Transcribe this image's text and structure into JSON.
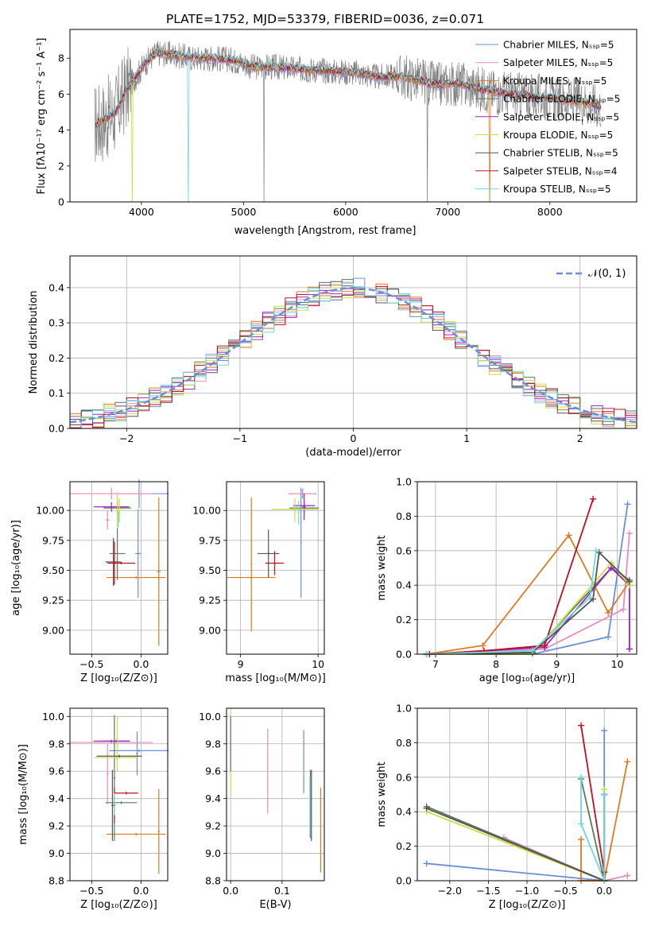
{
  "colors": {
    "chabrier_miles": "#6b8fd9",
    "salpeter_miles": "#e88bc0",
    "kroupa_miles": "#e07a1e",
    "chabrier_elodie": "#5a7a5a",
    "salpeter_elodie": "#a020c0",
    "kroupa_elodie": "#c8e040",
    "chabrier_stelib": "#555555",
    "salpeter_stelib": "#c01020",
    "kroupa_stelib": "#70d8e0",
    "data_grey": "#808080",
    "normal_curve": "#6a8fd8"
  },
  "chart_data": [
    {
      "type": "line",
      "title": "PLATE=1752, MJD=53379, FIBERID=0036, z=0.071",
      "xlabel": "wavelength [Angstrom, rest frame]",
      "ylabel": "Flux [fλ10⁻¹⁷ erg cm⁻² s⁻¹ A⁻¹]",
      "xlim": [
        3300,
        8850
      ],
      "ylim": [
        0,
        9.6
      ],
      "xticks": [
        "4000",
        "5000",
        "6000",
        "7000",
        "8000"
      ],
      "yticks": [
        "0",
        "2",
        "4",
        "6",
        "8"
      ],
      "legend_position": "top-right",
      "series": [
        {
          "name": "Chabrier MILES, N_SSP=5"
        },
        {
          "name": "Salpeter MILES, N_SSP=5"
        },
        {
          "name": "Kroupa MILES, N_SSP=5"
        },
        {
          "name": "Chabrier ELODIE, N_SSP=5"
        },
        {
          "name": "Salpeter ELODIE, N_SSP=5"
        },
        {
          "name": "Kroupa ELODIE, N_SSP=5"
        },
        {
          "name": "Chabrier STELIB, N_SSP=5"
        },
        {
          "name": "Salpeter STELIB, N_SSP=4"
        },
        {
          "name": "Kroupa STELIB, N_SSP=5"
        }
      ],
      "model_continuum": {
        "x": [
          3550,
          3650,
          3750,
          3850,
          3950,
          4050,
          4150,
          4300,
          4500,
          4700,
          4900,
          5100,
          5300,
          5500,
          5700,
          5900,
          6100,
          6300,
          6500,
          6700,
          6900,
          7100,
          7300,
          7500,
          7700,
          7900,
          8100,
          8300,
          8500
        ],
        "y": [
          4.3,
          4.6,
          5.0,
          6.2,
          7.0,
          7.8,
          8.3,
          8.2,
          8.0,
          8.0,
          7.9,
          7.5,
          7.5,
          7.4,
          7.35,
          7.25,
          7.2,
          6.95,
          7.0,
          6.8,
          6.5,
          6.6,
          6.3,
          6.1,
          5.95,
          5.85,
          5.7,
          5.6,
          5.3
        ]
      }
    },
    {
      "type": "histogram",
      "xlabel": "(data-model)/error",
      "ylabel": "Normed distribution",
      "xlim": [
        -2.5,
        2.5
      ],
      "ylim": [
        0,
        0.49
      ],
      "xticks": [
        "−2",
        "−1",
        "0",
        "1",
        "2"
      ],
      "yticks": [
        "0.0",
        "0.1",
        "0.2",
        "0.3",
        "0.4"
      ],
      "legend_position": "top-right",
      "legend": "𝒩(0, 1)",
      "bin_width": 0.1
    },
    {
      "type": "errorbar",
      "xlabel": "Z [log₁₀(Z/Z⊙)]",
      "ylabel": "age  [log₁₀(age/yr)]",
      "xlim": [
        -0.72,
        0.27
      ],
      "ylim": [
        8.8,
        10.24
      ],
      "xticks": [
        "−0.5",
        "0.0"
      ],
      "yticks": [
        "9.00",
        "9.25",
        "9.50",
        "9.75",
        "10.00"
      ],
      "points": [
        {
          "x": -0.02,
          "xerr": 0.3,
          "y": 10.14,
          "yerr": 0.12,
          "c": "chabrier_miles"
        },
        {
          "x": -0.03,
          "xerr": 0.03,
          "y": 9.64,
          "yerr": 0.37,
          "c": "chabrier_miles"
        },
        {
          "x": -0.3,
          "xerr": 0.42,
          "y": 10.14,
          "yerr": 0.05,
          "c": "salpeter_miles"
        },
        {
          "x": -0.34,
          "xerr": 0.02,
          "y": 9.92,
          "yerr": 0.08,
          "c": "salpeter_miles"
        },
        {
          "x": -0.05,
          "xerr": 0.3,
          "y": 9.44,
          "yerr": 0.01,
          "c": "kroupa_miles"
        },
        {
          "x": 0.18,
          "xerr": 0.02,
          "y": 9.49,
          "yerr": 0.62,
          "c": "kroupa_miles"
        },
        {
          "x": -0.24,
          "xerr": 0.14,
          "y": 10.02,
          "yerr": 0.06,
          "c": "chabrier_elodie"
        },
        {
          "x": -0.24,
          "xerr": 0.08,
          "y": 9.64,
          "yerr": 0.22,
          "c": "chabrier_elodie"
        },
        {
          "x": -0.3,
          "xerr": 0.18,
          "y": 10.03,
          "yerr": 0.04,
          "c": "salpeter_elodie"
        },
        {
          "x": -0.24,
          "xerr": 0.02,
          "y": 10.0,
          "yerr": 0.15,
          "c": "kroupa_elodie"
        },
        {
          "x": -0.22,
          "xerr": 0.03,
          "y": 10.0,
          "yerr": 0.1,
          "c": "kroupa_elodie"
        },
        {
          "x": -0.28,
          "xerr": 0.08,
          "y": 9.57,
          "yerr": 0.2,
          "c": "chabrier_stelib"
        },
        {
          "x": -0.2,
          "xerr": 0.14,
          "y": 9.56,
          "yerr": 0.01,
          "c": "salpeter_stelib"
        },
        {
          "x": -0.27,
          "xerr": 0.02,
          "y": 9.56,
          "yerr": 0.18,
          "c": "salpeter_stelib"
        },
        {
          "x": -0.23,
          "xerr": 0.01,
          "y": 9.93,
          "yerr": 0.07,
          "c": "kroupa_stelib"
        }
      ]
    },
    {
      "type": "errorbar",
      "xlabel": "mass [log₁₀(M/M⊙)]",
      "xlim": [
        8.82,
        10.08
      ],
      "ylim": [
        8.8,
        10.24
      ],
      "xticks": [
        "9",
        "10"
      ],
      "yticks": [
        "9.00",
        "9.25",
        "9.50",
        "9.75",
        "10.00"
      ],
      "points": [
        {
          "x": 9.8,
          "xerr": 0.18,
          "y": 10.14,
          "yerr": 0.04,
          "c": "chabrier_miles"
        },
        {
          "x": 9.78,
          "xerr": 0.01,
          "y": 9.73,
          "yerr": 0.46,
          "c": "chabrier_miles"
        },
        {
          "x": 9.8,
          "xerr": 0.17,
          "y": 10.14,
          "yerr": 0.02,
          "c": "salpeter_miles"
        },
        {
          "x": 9.14,
          "xerr": 0.31,
          "y": 9.44,
          "yerr": 0.01,
          "c": "kroupa_miles"
        },
        {
          "x": 9.14,
          "xerr": 0.01,
          "y": 9.55,
          "yerr": 0.56,
          "c": "kroupa_miles"
        },
        {
          "x": 9.82,
          "xerr": 0.19,
          "y": 10.02,
          "yerr": 0.06,
          "c": "chabrier_elodie"
        },
        {
          "x": 9.82,
          "xerr": 0.14,
          "y": 10.04,
          "yerr": 0.03,
          "c": "salpeter_elodie"
        },
        {
          "x": 9.82,
          "xerr": 0.02,
          "y": 10.03,
          "yerr": 0.11,
          "c": "salpeter_elodie"
        },
        {
          "x": 9.7,
          "xerr": 0.3,
          "y": 10.01,
          "yerr": 0.01,
          "c": "kroupa_elodie"
        },
        {
          "x": 9.7,
          "xerr": 0.02,
          "y": 10.0,
          "yerr": 0.1,
          "c": "kroupa_elodie"
        },
        {
          "x": 9.36,
          "xerr": 0.14,
          "y": 9.64,
          "yerr": 0.01,
          "c": "chabrier_stelib"
        },
        {
          "x": 9.36,
          "xerr": 0.01,
          "y": 9.64,
          "yerr": 0.2,
          "c": "chabrier_stelib"
        },
        {
          "x": 9.44,
          "xerr": 0.12,
          "y": 9.56,
          "yerr": 0.01,
          "c": "salpeter_stelib"
        },
        {
          "x": 9.44,
          "xerr": 0.01,
          "y": 9.56,
          "yerr": 0.1,
          "c": "salpeter_stelib"
        },
        {
          "x": 9.75,
          "xerr": 0.01,
          "y": 9.98,
          "yerr": 0.1,
          "c": "kroupa_stelib"
        }
      ]
    },
    {
      "type": "line",
      "xlabel": "age  [log₁₀(age/yr)]",
      "ylabel": "mass weight",
      "xlim": [
        6.7,
        10.32
      ],
      "ylim": [
        0,
        1.0
      ],
      "xticks": [
        "7",
        "8",
        "9",
        "10"
      ],
      "yticks": [
        "0.0",
        "0.2",
        "0.4",
        "0.6",
        "0.8",
        "1.0"
      ],
      "series": [
        {
          "c": "chabrier_miles",
          "x": [
            6.85,
            8.6,
            9.85,
            10.17
          ],
          "y": [
            0.0,
            0.0,
            0.1,
            0.87
          ]
        },
        {
          "c": "salpeter_miles",
          "x": [
            6.9,
            8.8,
            10.1,
            10.2
          ],
          "y": [
            0.0,
            0.03,
            0.26,
            0.7
          ]
        },
        {
          "c": "kroupa_miles",
          "x": [
            6.85,
            7.78,
            9.2,
            9.85,
            10.2
          ],
          "y": [
            0.0,
            0.05,
            0.69,
            0.24,
            0.42
          ]
        },
        {
          "c": "chabrier_elodie",
          "x": [
            6.85,
            8.6,
            9.9,
            10.2
          ],
          "y": [
            0.0,
            0.01,
            0.5,
            0.43
          ]
        },
        {
          "c": "salpeter_elodie",
          "x": [
            6.85,
            8.8,
            9.9,
            10.2,
            10.2
          ],
          "y": [
            0.0,
            0.04,
            0.5,
            0.4,
            0.03
          ]
        },
        {
          "c": "kroupa_elodie",
          "x": [
            6.85,
            8.6,
            9.9,
            10.2
          ],
          "y": [
            0.0,
            0.0,
            0.53,
            0.4
          ]
        },
        {
          "c": "chabrier_stelib",
          "x": [
            6.85,
            8.6,
            9.6,
            9.7,
            10.2
          ],
          "y": [
            0.0,
            0.01,
            0.32,
            0.59,
            0.42
          ]
        },
        {
          "c": "salpeter_stelib",
          "x": [
            6.9,
            7.8,
            8.8,
            9.6
          ],
          "y": [
            0.0,
            0.02,
            0.05,
            0.9
          ]
        },
        {
          "c": "kroupa_stelib",
          "x": [
            6.85,
            8.6,
            9.55,
            9.65
          ],
          "y": [
            0.0,
            0.02,
            0.33,
            0.6
          ]
        }
      ]
    },
    {
      "type": "errorbar",
      "xlabel": "Z [log₁₀(Z/Z⊙)]",
      "ylabel": "mass [log₁₀(M/M⊙)]",
      "xlim": [
        -0.72,
        0.27
      ],
      "ylim": [
        8.8,
        10.06
      ],
      "xticks": [
        "−0.5",
        "0.0"
      ],
      "yticks": [
        "8.8",
        "9.0",
        "9.2",
        "9.4",
        "9.6",
        "9.8",
        "10.0"
      ],
      "points": [
        {
          "x": -0.02,
          "xerr": 0.3,
          "y": 9.75,
          "yerr": 0.01,
          "c": "chabrier_miles"
        },
        {
          "x": -0.04,
          "xerr": 0.01,
          "y": 9.73,
          "yerr": 0.16,
          "c": "chabrier_miles"
        },
        {
          "x": -0.3,
          "xerr": 0.42,
          "y": 9.81,
          "yerr": 0.01,
          "c": "salpeter_miles"
        },
        {
          "x": -0.34,
          "xerr": 0.01,
          "y": 9.58,
          "yerr": 0.22,
          "c": "salpeter_miles"
        },
        {
          "x": -0.05,
          "xerr": 0.3,
          "y": 9.14,
          "yerr": 0.01,
          "c": "kroupa_miles"
        },
        {
          "x": 0.18,
          "xerr": 0.01,
          "y": 9.16,
          "yerr": 0.31,
          "c": "kroupa_miles"
        },
        {
          "x": -0.25,
          "xerr": 0.14,
          "y": 9.82,
          "yerr": 0.01,
          "c": "chabrier_elodie"
        },
        {
          "x": -0.27,
          "xerr": 0.01,
          "y": 9.55,
          "yerr": 0.46,
          "c": "chabrier_elodie"
        },
        {
          "x": -0.3,
          "xerr": 0.18,
          "y": 9.82,
          "yerr": 0.01,
          "c": "salpeter_elodie"
        },
        {
          "x": -0.25,
          "xerr": 0.22,
          "y": 9.7,
          "yerr": 0.01,
          "c": "kroupa_elodie"
        },
        {
          "x": -0.24,
          "xerr": 0.01,
          "y": 9.8,
          "yerr": 0.2,
          "c": "kroupa_elodie"
        },
        {
          "x": -0.22,
          "xerr": 0.23,
          "y": 9.71,
          "yerr": 0.01,
          "c": "chabrier_stelib"
        },
        {
          "x": -0.29,
          "xerr": 0.01,
          "y": 9.35,
          "yerr": 0.26,
          "c": "chabrier_stelib"
        },
        {
          "x": -0.15,
          "xerr": 0.12,
          "y": 9.44,
          "yerr": 0.01,
          "c": "salpeter_stelib"
        },
        {
          "x": -0.27,
          "xerr": 0.01,
          "y": 9.35,
          "yerr": 0.13,
          "c": "salpeter_stelib"
        },
        {
          "x": -0.2,
          "xerr": 0.16,
          "y": 9.37,
          "yerr": 0.01,
          "c": "chabrier_elodie"
        },
        {
          "x": -0.27,
          "xerr": 0.01,
          "y": 9.36,
          "yerr": 0.08,
          "c": "kroupa_stelib"
        }
      ]
    },
    {
      "type": "errorbar",
      "xlabel": "E(B-V)",
      "xlim": [
        -0.008,
        0.182
      ],
      "ylim": [
        8.8,
        10.06
      ],
      "xticks": [
        "0.0",
        "0.1"
      ],
      "yticks": [
        "8.8",
        "9.0",
        "9.2",
        "9.4",
        "9.6",
        "9.8",
        "10.0"
      ],
      "points": [
        {
          "x": 0.0,
          "xerr": 0.0,
          "y": 9.72,
          "yerr": 0.3,
          "c": "kroupa_elodie"
        },
        {
          "x": 0.0,
          "xerr": 0.0,
          "y": 9.8,
          "yerr": 0.2,
          "c": "chabrier_elodie"
        },
        {
          "x": 0.072,
          "xerr": 0.0,
          "y": 9.6,
          "yerr": 0.31,
          "c": "salpeter_miles"
        },
        {
          "x": 0.142,
          "xerr": 0.0,
          "y": 9.67,
          "yerr": 0.23,
          "c": "chabrier_miles"
        },
        {
          "x": 0.155,
          "xerr": 0.0,
          "y": 9.36,
          "yerr": 0.25,
          "c": "chabrier_elodie"
        },
        {
          "x": 0.157,
          "xerr": 0.0,
          "y": 9.35,
          "yerr": 0.26,
          "c": "chabrier_stelib"
        },
        {
          "x": 0.154,
          "xerr": 0.0,
          "y": 9.34,
          "yerr": 0.22,
          "c": "kroupa_stelib"
        },
        {
          "x": 0.175,
          "xerr": 0.0,
          "y": 9.17,
          "yerr": 0.31,
          "c": "kroupa_miles"
        }
      ]
    },
    {
      "type": "line",
      "xlabel": "Z [log₁₀(Z/Z⊙)]",
      "ylabel": "mass weight",
      "xlim": [
        -2.42,
        0.42
      ],
      "ylim": [
        0,
        1.0
      ],
      "xticks": [
        "−2.0",
        "−1.5",
        "−1.0",
        "−0.5",
        "0.0"
      ],
      "yticks": [
        "0.0",
        "0.2",
        "0.4",
        "0.6",
        "0.8",
        "1.0"
      ],
      "series": [
        {
          "c": "chabrier_miles",
          "x": [
            -2.3,
            0.0,
            0.0,
            0.0
          ],
          "y": [
            0.1,
            0.0,
            0.5,
            0.87
          ]
        },
        {
          "c": "salpeter_miles",
          "x": [
            -1.3,
            0.0,
            0.0,
            0.3
          ],
          "y": [
            0.25,
            0.0,
            0.0,
            0.03
          ]
        },
        {
          "c": "kroupa_miles",
          "x": [
            -0.3,
            -0.3,
            0.0,
            0.0,
            0.3
          ],
          "y": [
            0.24,
            0.0,
            0.0,
            0.0,
            0.69
          ]
        },
        {
          "c": "chabrier_elodie",
          "x": [
            -2.3,
            0.0,
            -0.3,
            0.0
          ],
          "y": [
            0.43,
            0.0,
            0.59,
            0.0
          ]
        },
        {
          "c": "salpeter_elodie",
          "x": [
            0.0,
            0.0
          ],
          "y": [
            0.0,
            0.5
          ]
        },
        {
          "c": "kroupa_elodie",
          "x": [
            -2.3,
            0.0,
            0.0
          ],
          "y": [
            0.4,
            0.0,
            0.53
          ]
        },
        {
          "c": "chabrier_stelib",
          "x": [
            -2.3,
            0.0,
            0.0
          ],
          "y": [
            0.42,
            0.0,
            0.5
          ]
        },
        {
          "c": "salpeter_stelib",
          "x": [
            -0.3,
            0.0,
            0.0
          ],
          "y": [
            0.9,
            0.05,
            0.0
          ]
        },
        {
          "c": "kroupa_stelib",
          "x": [
            -0.3,
            -0.3,
            0.0,
            0.0
          ],
          "y": [
            0.6,
            0.33,
            0.0,
            0.5
          ]
        }
      ]
    }
  ]
}
